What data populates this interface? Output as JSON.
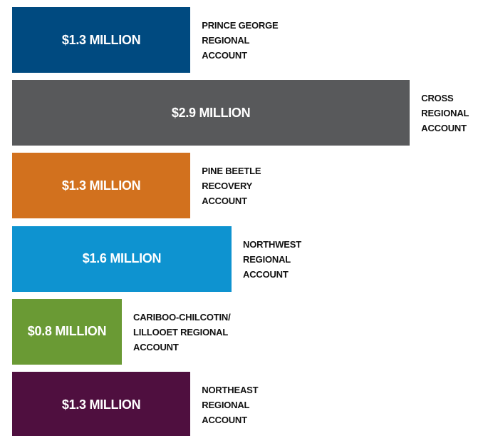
{
  "chart_data": {
    "type": "bar",
    "orientation": "horizontal",
    "categories": [
      "PRINCE GEORGE\nREGIONAL\nACCOUNT",
      "CROSS\nREGIONAL\nACCOUNT",
      "PINE BEETLE\nRECOVERY\nACCOUNT",
      "NORTHWEST\nREGIONAL\nACCOUNT",
      "CARIBOO-CHILCOTIN/\nLILLOOET REGIONAL\nACCOUNT",
      "NORTHEAST\nREGIONAL\nACCOUNT"
    ],
    "values": [
      1.3,
      2.9,
      1.3,
      1.6,
      0.8,
      1.3
    ],
    "value_labels": [
      "$1.3 MILLION",
      "$2.9 MILLION",
      "$1.3 MILLION",
      "$1.6 MILLION",
      "$0.8 MILLION",
      "$1.3 MILLION"
    ],
    "colors": [
      "#004a80",
      "#58595b",
      "#d2711e",
      "#0e93d0",
      "#6a9a34",
      "#4f0f3f"
    ]
  }
}
